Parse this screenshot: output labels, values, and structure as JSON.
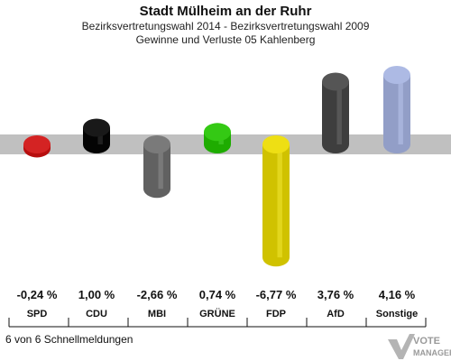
{
  "chart_data": {
    "type": "bar",
    "title": "Stadt Mülheim an der Ruhr",
    "subtitle1": "Bezirksvertretungswahl 2014 - Bezirksvertretungswahl 2009",
    "subtitle2": "Gewinne und Verluste 05 Kahlenberg",
    "categories": [
      "SPD",
      "CDU",
      "MBI",
      "GRÜNE",
      "FDP",
      "AfD",
      "Sonstige"
    ],
    "values": [
      -0.24,
      1.0,
      -2.66,
      0.74,
      -6.77,
      3.76,
      4.16
    ],
    "value_labels": [
      "-0,24 %",
      "1,00 %",
      "-2,66 %",
      "0,74 %",
      "-6,77 %",
      "3,76 %",
      "4,16 %"
    ],
    "colors": [
      "#d01010",
      "#050505",
      "#6e6e6e",
      "#22c400",
      "#ecdc00",
      "#464646",
      "#a6b4e2"
    ],
    "ylim": [
      -7.5,
      5
    ],
    "legend": "none",
    "grid": false
  },
  "footer_text": "6 von 6 Schnellmeldungen",
  "logo": {
    "text_line1": "VOTE",
    "text_line2": "MANAGER"
  }
}
